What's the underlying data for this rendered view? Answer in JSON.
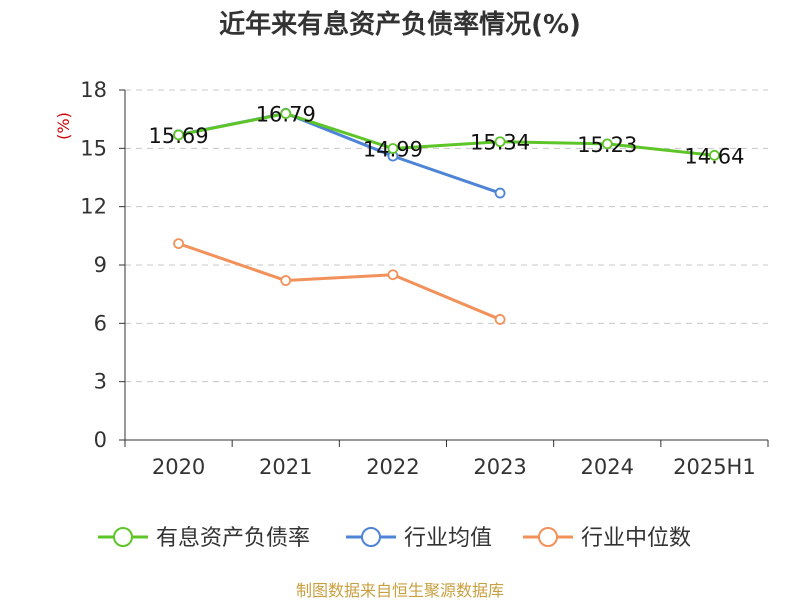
{
  "chart_data": {
    "type": "line",
    "title": "近年来有息资产负债率情况(%)",
    "ylabel": "(%)",
    "xlabel": "",
    "categories": [
      "2020",
      "2021",
      "2022",
      "2023",
      "2024",
      "2025H1"
    ],
    "ylim": [
      0,
      18
    ],
    "yticks": [
      0,
      3,
      6,
      9,
      12,
      15,
      18
    ],
    "grid": true,
    "legend_position": "bottom",
    "series": [
      {
        "name": "有息资产负债率",
        "color": "#5ec528",
        "values": [
          15.69,
          16.79,
          14.99,
          15.34,
          15.23,
          14.64
        ],
        "labels": [
          "15.69",
          "16.79",
          "14.99",
          "15.34",
          "15.23",
          "14.64"
        ]
      },
      {
        "name": "行业均值",
        "color": "#4e84d6",
        "values": [
          15.7,
          16.8,
          14.6,
          12.7,
          null,
          null
        ]
      },
      {
        "name": "行业中位数",
        "color": "#f2915a",
        "values": [
          10.1,
          8.2,
          8.5,
          6.2,
          null,
          null
        ]
      }
    ]
  },
  "source": "制图数据来自恒生聚源数据库"
}
